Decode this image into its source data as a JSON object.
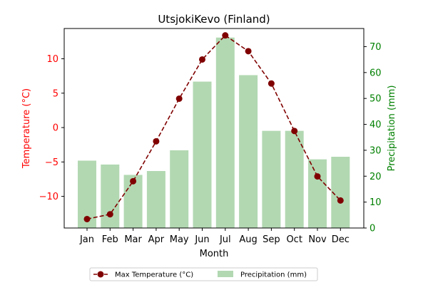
{
  "chart_data": {
    "type": "bar+line",
    "title": "UtsjokiKevo (Finland)",
    "xlabel": "Month",
    "ylabel_left": "Temperature (°C)",
    "ylabel_right": "Precipitation (mm)",
    "categories": [
      "Jan",
      "Feb",
      "Mar",
      "Apr",
      "May",
      "Jun",
      "Jul",
      "Aug",
      "Sep",
      "Oct",
      "Nov",
      "Dec"
    ],
    "ylim_left": [
      -14.6,
      14.4
    ],
    "ylim_right": [
      0,
      77
    ],
    "yticks_left": [
      -10,
      -5,
      0,
      5,
      10
    ],
    "yticks_right": [
      0,
      10,
      20,
      30,
      40,
      50,
      60,
      70
    ],
    "series": [
      {
        "name": "Max Temperature (°C)",
        "type": "line",
        "axis": "left",
        "color": "#800000",
        "values": [
          -13.3,
          -12.6,
          -7.8,
          -2.0,
          4.2,
          9.9,
          13.4,
          11.1,
          6.4,
          -0.5,
          -7.1,
          -10.6
        ]
      },
      {
        "name": "Precipitation (mm)",
        "type": "bar",
        "axis": "right",
        "color": "#b2d8b2",
        "values": [
          26,
          24.5,
          20.5,
          22,
          30,
          56.5,
          73.5,
          59,
          37.5,
          37.5,
          26.5,
          27.5
        ]
      }
    ],
    "legend": "bottom-center",
    "grid": false
  },
  "colors": {
    "left_axis": "#ff0000",
    "right_axis": "#008000",
    "text": "#000000"
  }
}
